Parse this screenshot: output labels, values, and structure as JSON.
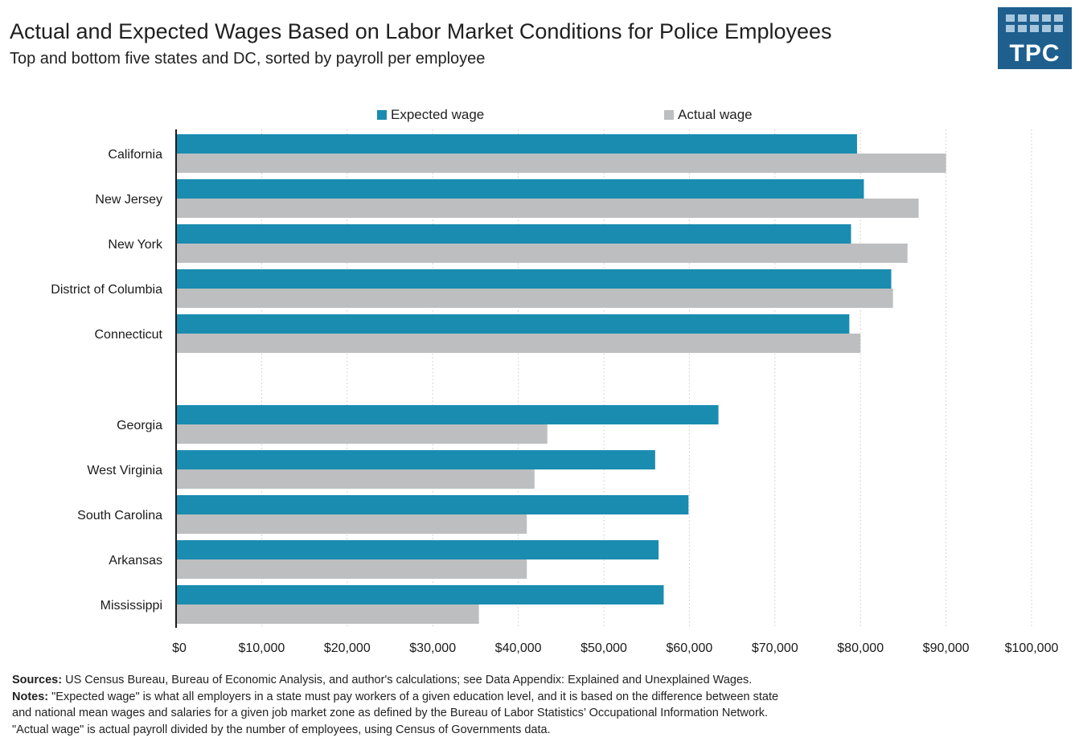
{
  "header": {
    "title": "Actual and Expected Wages Based on Labor Market Conditions for Police Employees",
    "subtitle": "Top and bottom five states and DC,  sorted by payroll per employee"
  },
  "logo": {
    "text": "TPC"
  },
  "colors": {
    "expected": "#1a8cb0",
    "actual": "#bdbec0",
    "logo_bg": "#1e5f8e",
    "grid": "#c8c8c8"
  },
  "chart_data": {
    "type": "bar",
    "orientation": "horizontal",
    "categories": [
      "California",
      "New Jersey",
      "New York",
      "District of Columbia",
      "Connecticut",
      "Georgia",
      "West Virginia",
      "South Carolina",
      "Arkansas",
      "Mississippi"
    ],
    "series": [
      {
        "name": "Expected wage",
        "values": [
          79600,
          80400,
          78900,
          83600,
          78700,
          63400,
          56000,
          59900,
          56400,
          57000
        ]
      },
      {
        "name": "Actual wage",
        "values": [
          90000,
          86800,
          85500,
          83800,
          80000,
          43400,
          41900,
          41000,
          41000,
          35400
        ]
      }
    ],
    "xlim": [
      0,
      100000
    ],
    "xticks": [
      "$0",
      "$10,000",
      "$20,000",
      "$30,000",
      "$40,000",
      "$50,000",
      "$60,000",
      "$70,000",
      "$80,000",
      "$90,000",
      "$100,000"
    ],
    "grid": "vertical dotted",
    "legend": "top"
  },
  "notes": {
    "sources_label": "Sources:",
    "sources_text": " US Census Bureau, Bureau of Economic Analysis, and author's calculations; see Data Appendix: Explained and Unexplained Wages.",
    "notes_label": "Notes:",
    "notes_line1": " \"Expected wage\" is what all employers in a state must pay workers of a given education level, and it is based on the difference between state",
    "notes_line2": "and national mean wages and salaries for a given job market zone as defined by the Bureau of Labor Statistics’ Occupational Information Network.",
    "notes_line3": "\"Actual wage\" is actual payroll divided by the number of employees, using Census of Governments data."
  }
}
